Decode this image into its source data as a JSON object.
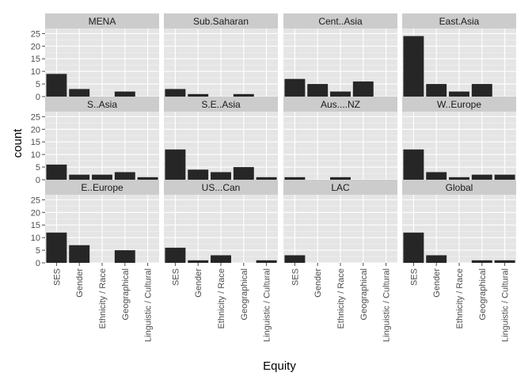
{
  "chart_data": {
    "type": "bar",
    "xlabel": "Equity",
    "ylabel": "count",
    "categories": [
      "SES",
      "Gender",
      "Ethnicity / Race",
      "Geographical",
      "Linguistic / Cultural"
    ],
    "ylim": [
      0,
      27
    ],
    "yticks": [
      0,
      5,
      10,
      15,
      20,
      25
    ],
    "grid": true,
    "facets": [
      {
        "name": "MENA",
        "values": [
          9,
          3,
          0,
          2,
          0
        ]
      },
      {
        "name": "Sub.Saharan",
        "values": [
          3,
          1,
          0,
          1,
          0
        ]
      },
      {
        "name": "Cent..Asia",
        "values": [
          7,
          5,
          2,
          6,
          0
        ]
      },
      {
        "name": "East.Asia",
        "values": [
          24,
          5,
          2,
          5,
          0
        ]
      },
      {
        "name": "S..Asia",
        "values": [
          6,
          2,
          2,
          3,
          1
        ]
      },
      {
        "name": "S.E..Asia",
        "values": [
          12,
          4,
          3,
          5,
          1
        ]
      },
      {
        "name": "Aus....NZ",
        "values": [
          1,
          0,
          1,
          0,
          0
        ]
      },
      {
        "name": "W..Europe",
        "values": [
          12,
          3,
          1,
          2,
          2
        ]
      },
      {
        "name": "E..Europe",
        "values": [
          12,
          7,
          0,
          5,
          0
        ]
      },
      {
        "name": "US...Can",
        "values": [
          6,
          1,
          3,
          0,
          1
        ]
      },
      {
        "name": "LAC",
        "values": [
          3,
          0,
          0,
          0,
          0
        ]
      },
      {
        "name": "Global",
        "values": [
          12,
          3,
          0,
          1,
          1
        ]
      }
    ]
  },
  "colors": {
    "panel": "#e5e5e5",
    "strip": "#cccccc",
    "grid": "#ffffff",
    "bar": "#262626"
  }
}
